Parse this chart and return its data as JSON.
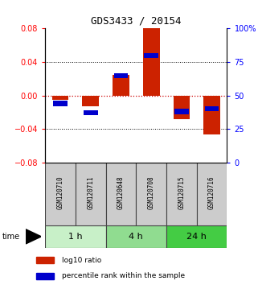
{
  "title": "GDS3433 / 20154",
  "samples": [
    "GSM120710",
    "GSM120711",
    "GSM120648",
    "GSM120708",
    "GSM120715",
    "GSM120716"
  ],
  "log10_ratio": [
    -0.005,
    -0.013,
    0.025,
    0.08,
    -0.028,
    -0.047
  ],
  "percentile_rank": [
    44,
    37,
    65,
    80,
    38,
    40
  ],
  "time_groups": [
    {
      "label": "1 h",
      "start": 0,
      "end": 2,
      "color": "#c8f0c8"
    },
    {
      "label": "4 h",
      "start": 2,
      "end": 4,
      "color": "#90dc90"
    },
    {
      "label": "24 h",
      "start": 4,
      "end": 6,
      "color": "#44cc44"
    }
  ],
  "bar_width": 0.55,
  "ylim_left": [
    -0.08,
    0.08
  ],
  "yticks_left": [
    -0.08,
    -0.04,
    0,
    0.04,
    0.08
  ],
  "ylim_right": [
    0,
    100
  ],
  "yticks_right": [
    0,
    25,
    50,
    75,
    100
  ],
  "yticklabels_right": [
    "0",
    "25",
    "50",
    "75",
    "100%"
  ],
  "red_color": "#cc2200",
  "blue_color": "#0000cc",
  "gray_color": "#cccccc",
  "zero_line_color": "#cc0000",
  "background_color": "#ffffff",
  "legend_red": "log10 ratio",
  "legend_blue": "percentile rank within the sample",
  "time_label": "time"
}
